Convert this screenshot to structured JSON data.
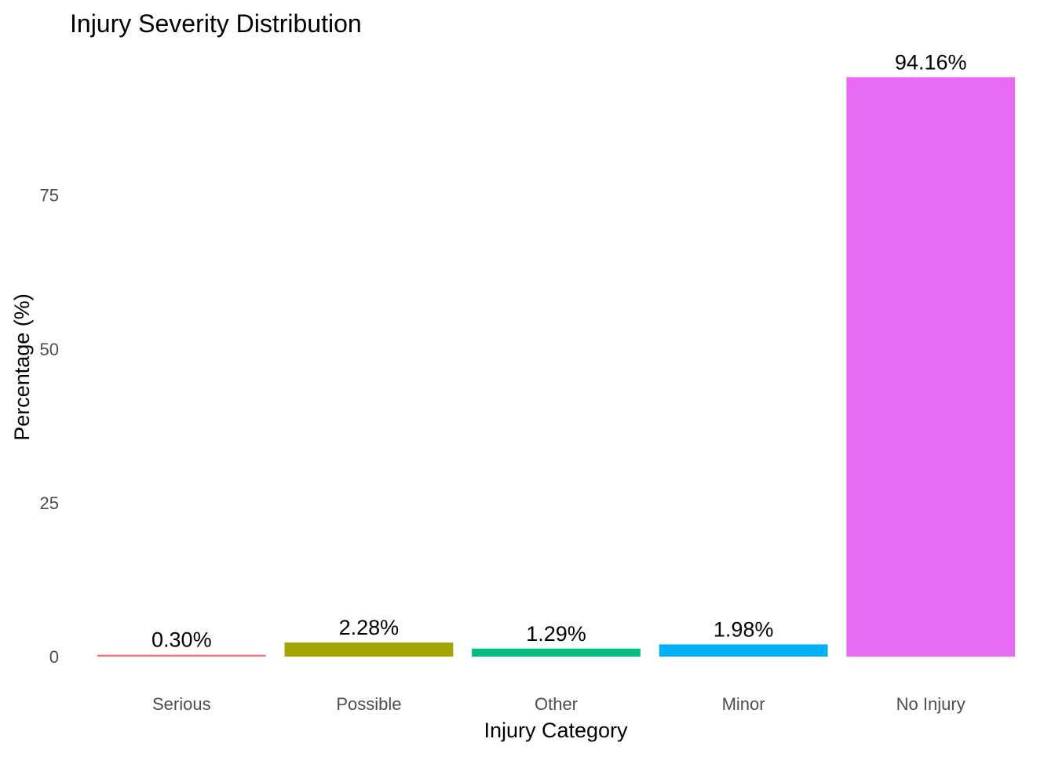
{
  "chart_data": {
    "type": "bar",
    "title": "Injury Severity Distribution",
    "xlabel": "Injury Category",
    "ylabel": "Percentage (%)",
    "categories": [
      "Serious",
      "Possible",
      "Other",
      "Minor",
      "No Injury"
    ],
    "values": [
      0.3,
      2.28,
      1.29,
      1.98,
      94.16
    ],
    "value_labels": [
      "0.30%",
      "2.28%",
      "1.29%",
      "1.98%",
      "94.16%"
    ],
    "colors": [
      "#F8766D",
      "#A3A500",
      "#00BF7D",
      "#00B0F6",
      "#E76BF3"
    ],
    "yticks": [
      0,
      25,
      50,
      75
    ],
    "ytick_labels": [
      "0",
      "25",
      "50",
      "75"
    ],
    "ylim": [
      0,
      94.16
    ],
    "grid": false,
    "legend": "none"
  }
}
